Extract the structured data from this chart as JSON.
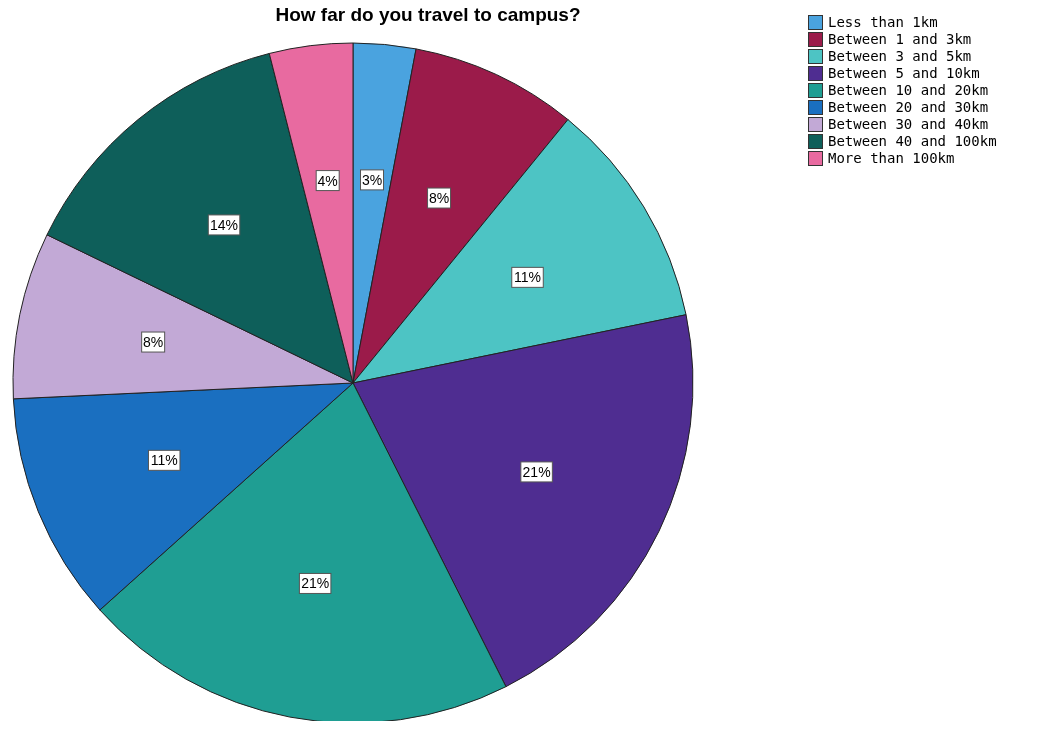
{
  "chart_data": {
    "type": "pie",
    "title": "How far do you travel to campus?",
    "categories": [
      "Less than 1km",
      "Between 1 and 3km",
      "Between 3 and 5km",
      "Between 5 and 10km",
      "Between 10 and 20km",
      "Between 20 and 30km",
      "Between 30 and 40km",
      "Between 40 and 100km",
      "More than 100km"
    ],
    "values": [
      3,
      8,
      11,
      21,
      21,
      11,
      8,
      14,
      4
    ],
    "value_labels": [
      "3%",
      "8%",
      "11%",
      "21%",
      "21%",
      "11%",
      "8%",
      "14%",
      "4%"
    ],
    "colors": [
      "#4aa3df",
      "#9b1b4a",
      "#4dc4c4",
      "#4f2d91",
      "#1f9e93",
      "#1a6fc0",
      "#c2a9d6",
      "#0e5f5a",
      "#e86aa0"
    ],
    "legend": "top right"
  }
}
